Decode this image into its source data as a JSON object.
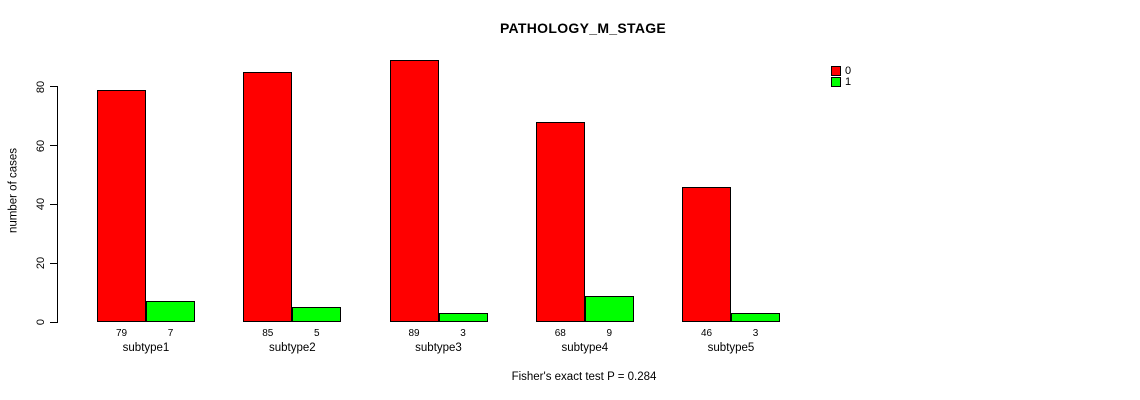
{
  "title": "PATHOLOGY_M_STAGE",
  "footer": "Fisher's exact test P = 0.284",
  "y_axis": {
    "label": "number of cases",
    "ticks": [
      0,
      20,
      40,
      60,
      80
    ]
  },
  "legend": [
    {
      "label": "0",
      "color": "#FF0000"
    },
    {
      "label": "1",
      "color": "#00FF00"
    }
  ],
  "chart_data": {
    "type": "bar",
    "title": "PATHOLOGY_M_STAGE",
    "categories": [
      "subtype1",
      "subtype2",
      "subtype3",
      "subtype4",
      "subtype5"
    ],
    "series": [
      {
        "name": "0",
        "color": "#FF0000",
        "values": [
          79,
          85,
          89,
          68,
          46
        ]
      },
      {
        "name": "1",
        "color": "#00FF00",
        "values": [
          7,
          5,
          3,
          9,
          3
        ]
      }
    ],
    "ylabel": "number of cases",
    "ylim": [
      0,
      89
    ],
    "grid": false,
    "legend_position": "top-right",
    "annotation": "Fisher's exact test P = 0.284"
  }
}
